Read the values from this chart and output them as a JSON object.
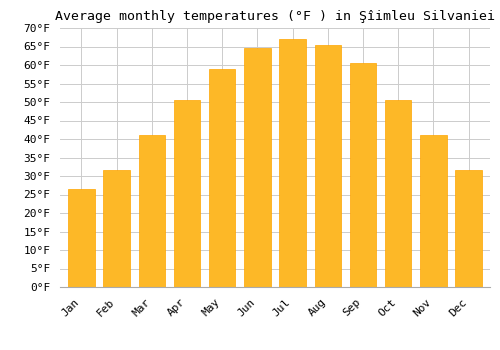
{
  "title": "Average monthly temperatures (°F ) in Şîimleu Silvaniei",
  "months": [
    "Jan",
    "Feb",
    "Mar",
    "Apr",
    "May",
    "Jun",
    "Jul",
    "Aug",
    "Sep",
    "Oct",
    "Nov",
    "Dec"
  ],
  "values": [
    26.5,
    31.5,
    41.0,
    50.5,
    59.0,
    64.5,
    67.0,
    65.5,
    60.5,
    50.5,
    41.0,
    31.5
  ],
  "bar_color": "#FDB827",
  "bar_edge_color": "#FFA500",
  "background_color": "#ffffff",
  "grid_color": "#cccccc",
  "ylim": [
    0,
    70
  ],
  "ytick_step": 5,
  "title_fontsize": 9.5,
  "tick_fontsize": 8,
  "font_family": "monospace",
  "fig_width": 5.0,
  "fig_height": 3.5,
  "dpi": 100
}
